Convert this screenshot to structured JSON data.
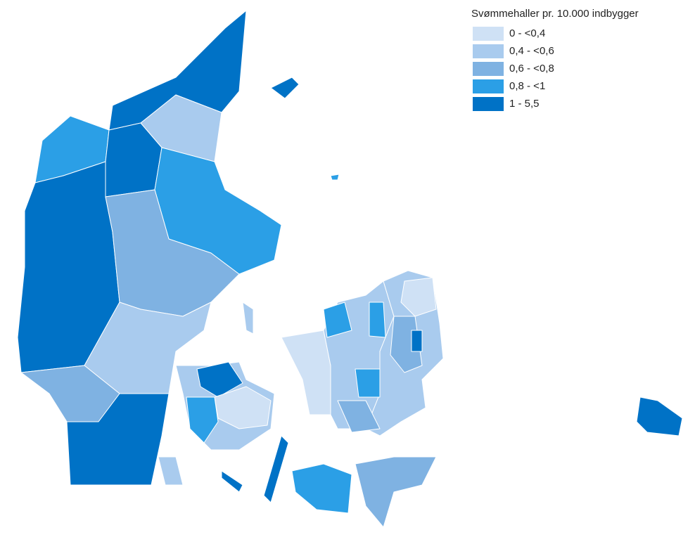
{
  "legend": {
    "title": "Svømmehaller pr. 10.000 indbygger",
    "items": [
      {
        "label": "0 - <0,4",
        "color": "#cfe1f5"
      },
      {
        "label": "0,4 - <0,6",
        "color": "#a9cbee"
      },
      {
        "label": "0,6 - <0,8",
        "color": "#7fb2e2"
      },
      {
        "label": "0,8 - <1",
        "color": "#2b9fe6"
      },
      {
        "label": "1 - 5,5",
        "color": "#0072c6"
      }
    ]
  }
}
